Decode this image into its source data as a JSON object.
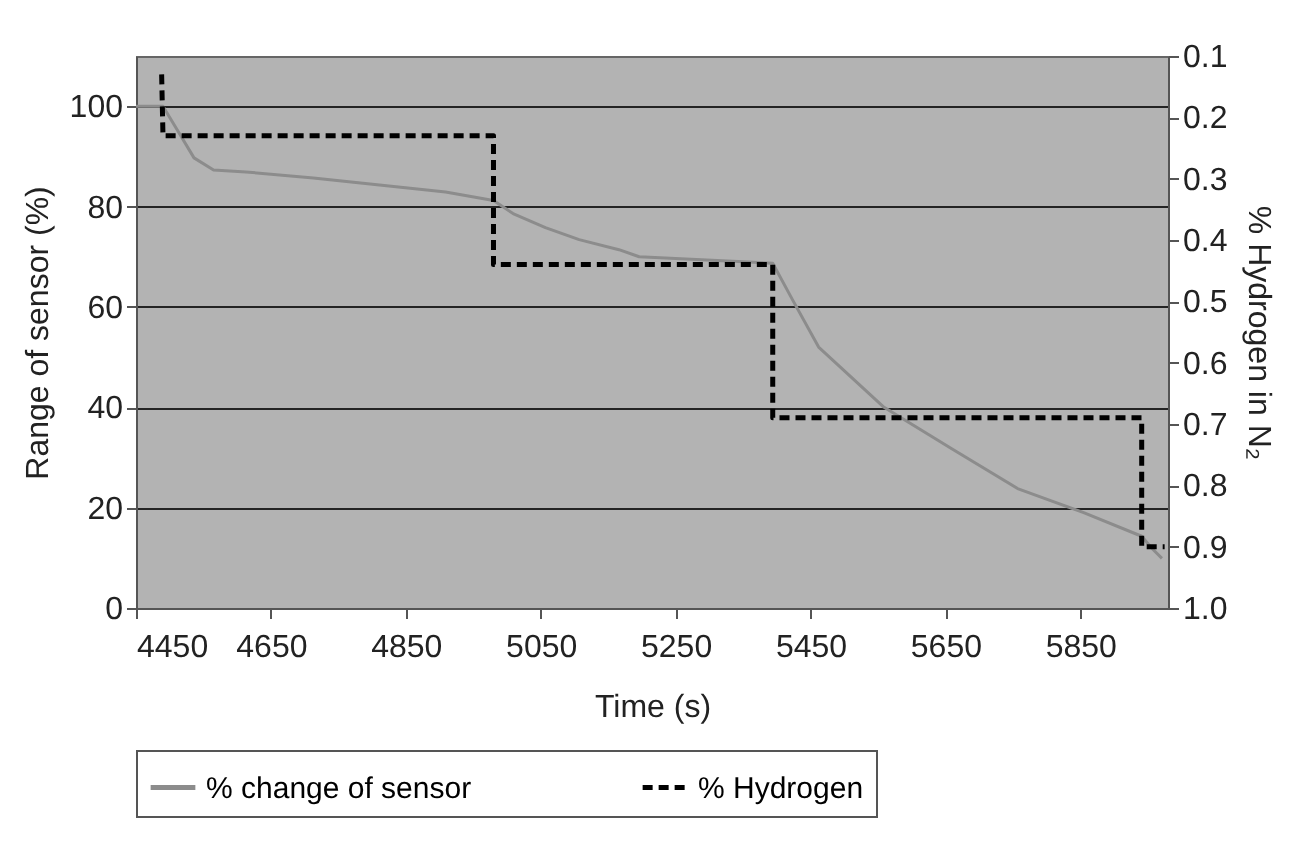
{
  "chart_data": {
    "type": "line",
    "xlabel": "Time (s)",
    "ylabel": "Range of sensor (%)",
    "y2label": "% Hydrogen in N₂",
    "xlim": [
      4450,
      5980
    ],
    "xticks": [
      4450,
      4650,
      4850,
      5050,
      5250,
      5450,
      5650,
      5850
    ],
    "ylim": [
      0,
      110
    ],
    "yticks": [
      0,
      20,
      40,
      60,
      80,
      100
    ],
    "y2lim": [
      1.0,
      0.1
    ],
    "y2ticks": [
      {
        "value": 1.0,
        "label": "1.0"
      },
      0.9,
      0.8,
      0.7,
      0.6,
      0.5,
      0.4,
      0.3,
      0.2,
      0.1
    ],
    "grid": "y",
    "legend": "bottom",
    "series": [
      {
        "name": "% change of sensor",
        "color": "#8c8c8c",
        "line_style": "solid",
        "x": [
          4450,
          4490,
          4515,
          4536,
          4565,
          4613,
          4713,
          4811,
          4909,
          4980,
          5009,
          5057,
          5107,
          5166,
          5196,
          5394,
          5423,
          5462,
          5559,
          5660,
          5757,
          5855,
          5941,
          5956,
          5971
        ],
        "values": [
          100,
          100,
          94.4,
          89.7,
          87.3,
          86.9,
          85.7,
          84.3,
          82.9,
          81.2,
          78.6,
          75.8,
          73.4,
          71.4,
          70,
          68.7,
          61.5,
          52,
          40,
          31.7,
          23.8,
          19,
          14.3,
          11.9,
          9.9
        ]
      },
      {
        "name": "% Hydrogen",
        "color": "#000000",
        "line_style": "dashed",
        "axis": "y2",
        "x": [
          4488,
          4490,
          4980,
          4980,
          5394,
          5394,
          5941,
          5941,
          5975
        ],
        "values": [
          0.13,
          0.23,
          0.23,
          0.44,
          0.44,
          0.69,
          0.69,
          0.9,
          0.9
        ]
      }
    ]
  }
}
